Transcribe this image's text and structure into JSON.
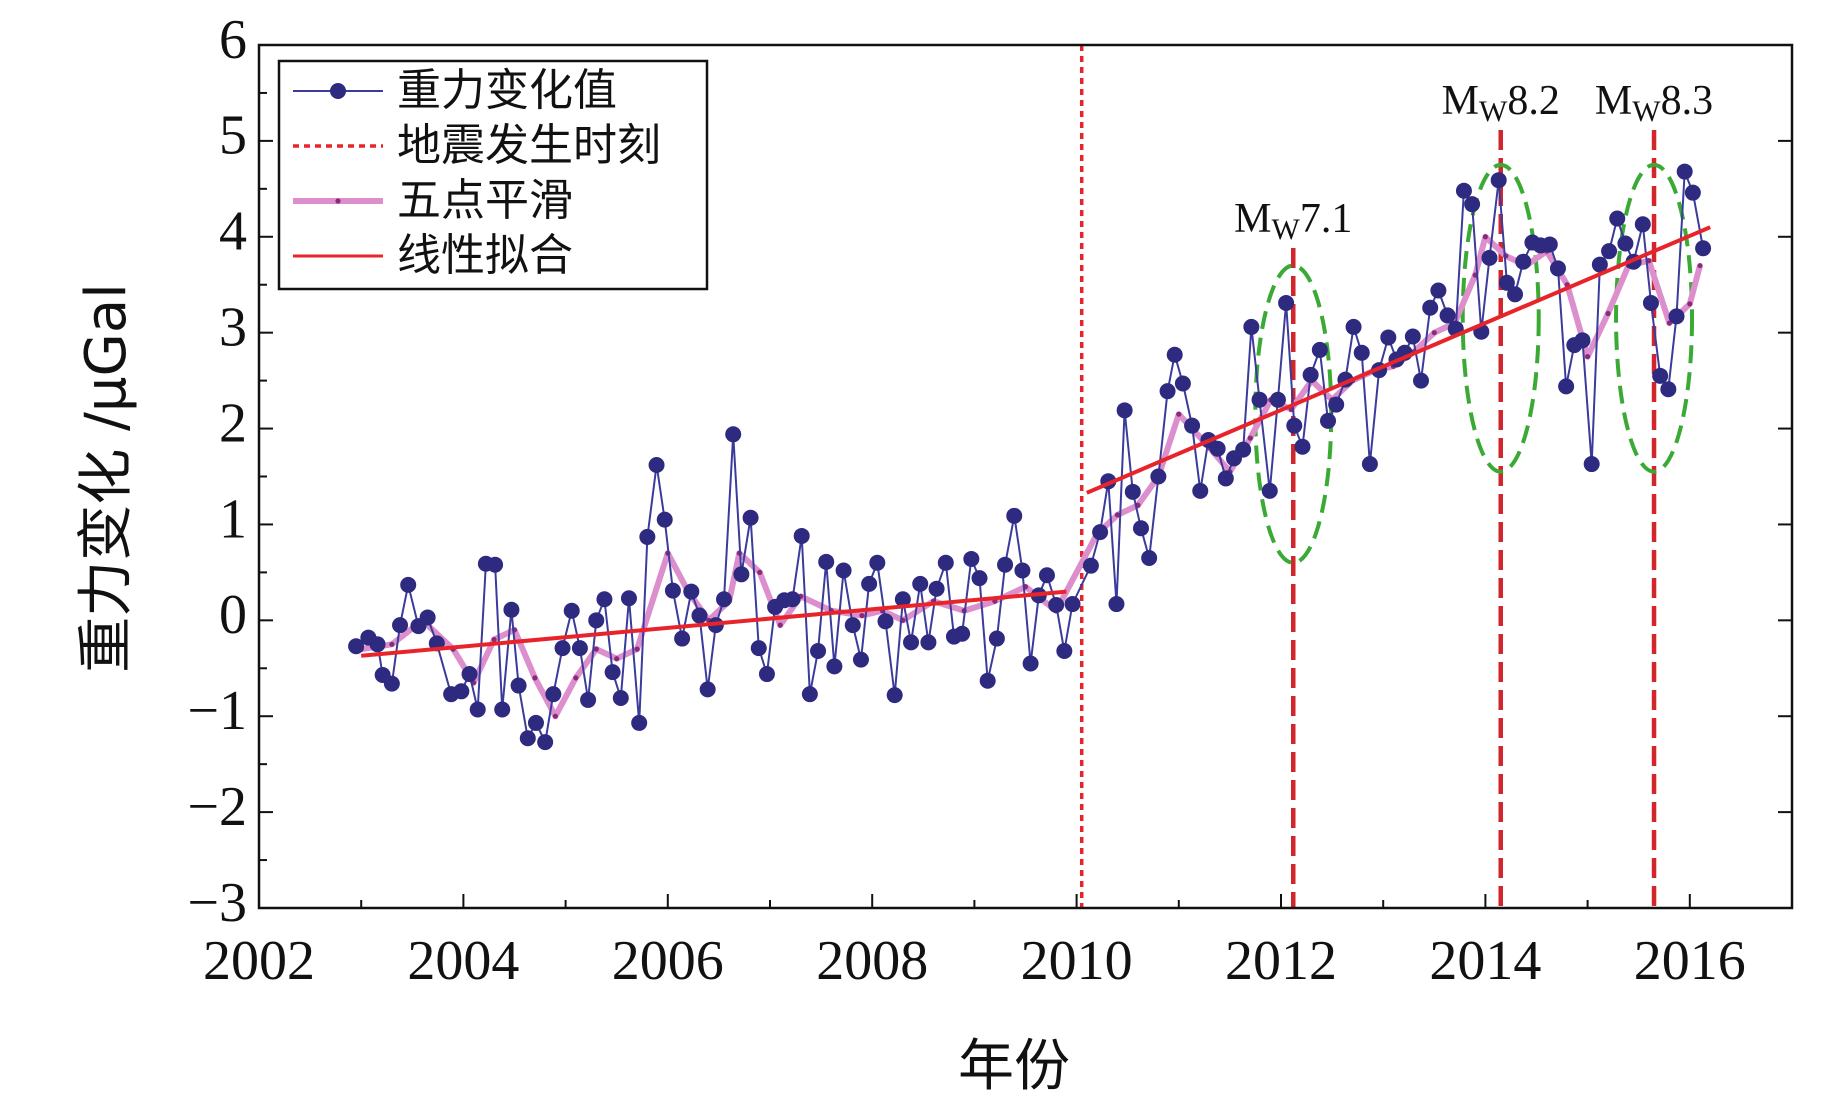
{
  "chart_data": {
    "type": "line",
    "xlabel": "年份",
    "ylabel": "重力变化 /μGal",
    "xlim": [
      2002,
      2017
    ],
    "xticks": [
      2002,
      2004,
      2006,
      2008,
      2010,
      2012,
      2014,
      2016
    ],
    "ylim": [
      -3,
      6
    ],
    "yticks": [
      {
        "value": -3,
        "label": "−3"
      },
      {
        "value": -2,
        "label": "−2"
      },
      {
        "value": -1,
        "label": "−1"
      },
      0,
      1,
      2,
      3,
      4,
      5,
      6
    ],
    "legend": "upper left",
    "series": [
      {
        "name": "重力变化值",
        "color": "#2e2a80",
        "style": "line-marker",
        "x": [
          2002.95,
          2003.07,
          2003.16,
          2003.21,
          2003.3,
          2003.38,
          2003.46,
          2003.56,
          2003.65,
          2003.74,
          2003.88,
          2003.98,
          2004.06,
          2004.14,
          2004.22,
          2004.31,
          2004.38,
          2004.47,
          2004.54,
          2004.63,
          2004.71,
          2004.8,
          2004.88,
          2004.97,
          2005.06,
          2005.14,
          2005.22,
          2005.3,
          2005.38,
          2005.46,
          2005.54,
          2005.62,
          2005.72,
          2005.8,
          2005.89,
          2005.97,
          2006.05,
          2006.14,
          2006.23,
          2006.31,
          2006.39,
          2006.47,
          2006.55,
          2006.64,
          2006.72,
          2006.81,
          2006.89,
          2006.97,
          2007.05,
          2007.14,
          2007.22,
          2007.31,
          2007.39,
          2007.47,
          2007.55,
          2007.63,
          2007.72,
          2007.81,
          2007.89,
          2007.97,
          2008.05,
          2008.13,
          2008.22,
          2008.3,
          2008.38,
          2008.47,
          2008.55,
          2008.63,
          2008.72,
          2008.8,
          2008.88,
          2008.97,
          2009.05,
          2009.13,
          2009.22,
          2009.3,
          2009.39,
          2009.47,
          2009.55,
          2009.63,
          2009.71,
          2009.8,
          2009.88,
          2009.96,
          2010.14,
          2010.23,
          2010.31,
          2010.39,
          2010.47,
          2010.55,
          2010.63,
          2010.71,
          2010.8,
          2010.89,
          2010.96,
          2011.04,
          2011.13,
          2011.21,
          2011.29,
          2011.38,
          2011.46,
          2011.54,
          2011.63,
          2011.71,
          2011.79,
          2011.89,
          2011.97,
          2012.05,
          2012.13,
          2012.21,
          2012.29,
          2012.38,
          2012.46,
          2012.54,
          2012.63,
          2012.71,
          2012.79,
          2012.87,
          2012.96,
          2013.05,
          2013.13,
          2013.21,
          2013.29,
          2013.37,
          2013.46,
          2013.54,
          2013.63,
          2013.71,
          2013.79,
          2013.87,
          2013.96,
          2014.04,
          2014.13,
          2014.21,
          2014.29,
          2014.37,
          2014.46,
          2014.54,
          2014.63,
          2014.71,
          2014.79,
          2014.87,
          2014.95,
          2015.04,
          2015.12,
          2015.21,
          2015.29,
          2015.37,
          2015.45,
          2015.54,
          2015.62,
          2015.71,
          2015.79,
          2015.87,
          2015.95,
          2016.03,
          2016.13
        ],
        "values": [
          -0.27,
          -0.18,
          -0.25,
          -0.57,
          -0.66,
          -0.05,
          0.37,
          -0.06,
          0.03,
          -0.24,
          -0.77,
          -0.74,
          -0.56,
          -0.93,
          0.59,
          0.58,
          -0.93,
          0.11,
          -0.68,
          -1.23,
          -1.07,
          -1.27,
          -0.77,
          -0.29,
          0.1,
          -0.29,
          -0.83,
          0.0,
          0.22,
          -0.54,
          -0.81,
          0.23,
          -1.07,
          0.87,
          1.62,
          1.05,
          0.31,
          -0.19,
          0.3,
          0.05,
          -0.72,
          -0.05,
          0.22,
          1.94,
          0.48,
          1.07,
          -0.29,
          -0.56,
          0.14,
          0.21,
          0.22,
          0.88,
          -0.77,
          -0.32,
          0.61,
          -0.48,
          0.52,
          -0.05,
          -0.41,
          0.38,
          0.6,
          -0.01,
          -0.78,
          0.22,
          -0.23,
          0.38,
          -0.23,
          0.33,
          0.6,
          -0.17,
          -0.14,
          0.64,
          0.44,
          -0.63,
          -0.19,
          0.58,
          1.09,
          0.52,
          -0.45,
          0.26,
          0.47,
          0.16,
          -0.32,
          0.17,
          0.57,
          0.92,
          1.45,
          0.17,
          2.19,
          1.34,
          0.96,
          0.65,
          1.5,
          2.39,
          2.77,
          2.47,
          2.03,
          1.35,
          1.88,
          1.79,
          1.48,
          1.69,
          1.78,
          3.06,
          2.3,
          1.35,
          2.3,
          3.31,
          2.03,
          1.81,
          2.56,
          2.82,
          2.08,
          2.25,
          2.51,
          3.06,
          2.79,
          1.63,
          2.61,
          2.95,
          2.72,
          2.79,
          2.96,
          2.5,
          3.26,
          3.44,
          3.18,
          3.04,
          4.48,
          4.34,
          3.01,
          3.78,
          4.59,
          3.52,
          3.4,
          3.74,
          3.94,
          3.91,
          3.92,
          3.67,
          2.44,
          2.87,
          2.92,
          1.63,
          3.71,
          3.85,
          4.19,
          3.93,
          3.74,
          4.13,
          3.31,
          2.55,
          2.41,
          3.17,
          4.68,
          4.46,
          3.88
        ]
      },
      {
        "name": "五点平滑",
        "color": "#dc8fcc",
        "dot_color": "#8a2a7a",
        "style": "smooth",
        "x": [
          2003.0,
          2003.3,
          2003.6,
          2003.9,
          2004.1,
          2004.3,
          2004.5,
          2004.7,
          2004.9,
          2005.1,
          2005.3,
          2005.5,
          2005.7,
          2006.0,
          2006.2,
          2006.4,
          2006.6,
          2006.7,
          2006.9,
          2007.1,
          2007.3,
          2007.6,
          2007.9,
          2008.1,
          2008.3,
          2008.6,
          2008.9,
          2009.2,
          2009.5,
          2009.8,
          2010.2,
          2010.4,
          2010.6,
          2010.8,
          2011.0,
          2011.3,
          2011.5,
          2011.7,
          2011.9,
          2012.1,
          2012.3,
          2012.5,
          2012.7,
          2012.9,
          2013.1,
          2013.3,
          2013.5,
          2013.7,
          2013.9,
          2014.0,
          2014.2,
          2014.4,
          2014.6,
          2014.8,
          2015.0,
          2015.2,
          2015.4,
          2015.6,
          2015.8,
          2016.0,
          2016.1
        ],
        "values": [
          -0.3,
          -0.25,
          0.0,
          -0.3,
          -0.65,
          -0.2,
          -0.1,
          -0.6,
          -1.0,
          -0.6,
          -0.3,
          -0.4,
          -0.3,
          0.7,
          0.3,
          0.0,
          0.2,
          0.7,
          0.5,
          -0.05,
          0.25,
          0.1,
          0.05,
          0.1,
          0.0,
          0.2,
          0.1,
          0.2,
          0.35,
          0.1,
          0.9,
          1.1,
          1.2,
          1.5,
          2.15,
          1.8,
          1.55,
          1.9,
          2.3,
          2.2,
          2.5,
          2.3,
          2.5,
          2.6,
          2.65,
          2.8,
          3.0,
          3.1,
          3.6,
          4.0,
          3.8,
          3.7,
          3.85,
          3.5,
          2.75,
          3.2,
          3.7,
          3.75,
          3.1,
          3.3,
          3.7
        ]
      },
      {
        "name": "线性拟合",
        "color": "#e8242b",
        "style": "fit",
        "segments": [
          {
            "x": [
              2003.0,
              2009.9
            ],
            "values": [
              -0.37,
              0.3
            ]
          },
          {
            "x": [
              2010.1,
              2016.2
            ],
            "values": [
              1.33,
              4.1
            ]
          }
        ]
      }
    ],
    "events": {
      "name": "地震发生时刻",
      "color": "#e8242b",
      "x": [
        2010.05,
        2012.12,
        2014.15,
        2015.65
      ],
      "label_prefix": "M",
      "label_sub": "W",
      "labels": [
        null,
        "7.1",
        "8.2",
        "8.3"
      ]
    }
  }
}
